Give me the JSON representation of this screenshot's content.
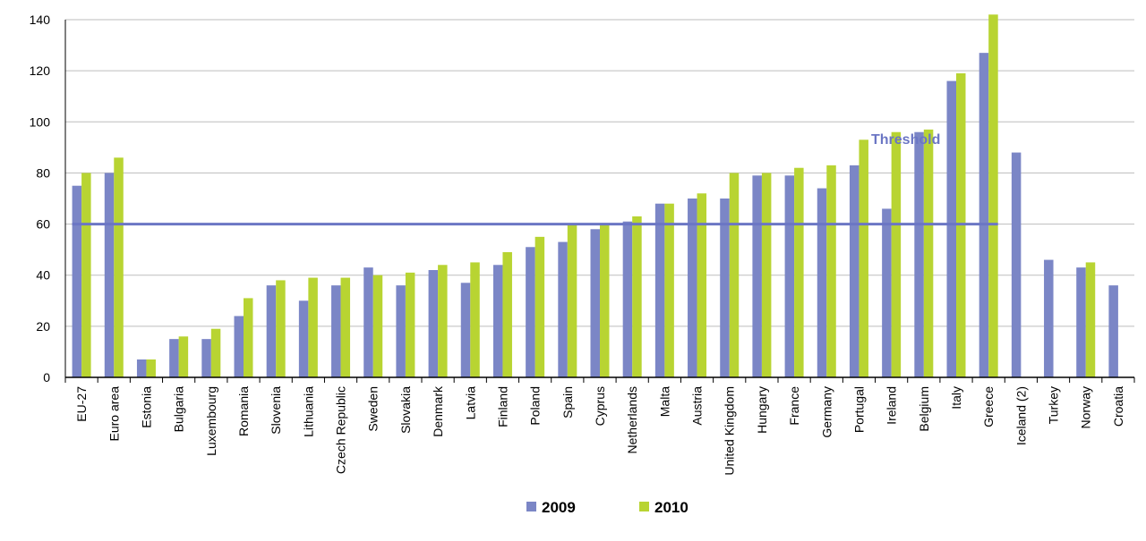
{
  "chart_data": {
    "type": "bar",
    "categories": [
      "EU-27",
      "Euro area",
      "Estonia",
      "Bulgaria",
      "Luxembourg",
      "Romania",
      "Slovenia",
      "Lithuania",
      "Czech Republic",
      "Sweden",
      "Slovakia",
      "Denmark",
      "Latvia",
      "Finland",
      "Poland",
      "Spain",
      "Cyprus",
      "Netherlands",
      "Malta",
      "Austria",
      "United Kingdom",
      "Hungary",
      "France",
      "Germany",
      "Portugal",
      "Ireland",
      "Belgium",
      "Italy",
      "Greece",
      "Iceland (2)",
      "Turkey",
      "Norway",
      "Croatia"
    ],
    "series": [
      {
        "name": "2009",
        "color": "#7b86c6",
        "values": [
          75,
          80,
          7,
          15,
          15,
          24,
          36,
          30,
          36,
          43,
          36,
          42,
          37,
          44,
          51,
          53,
          58,
          61,
          68,
          70,
          70,
          79,
          79,
          74,
          83,
          66,
          96,
          116,
          127,
          88,
          46,
          43,
          36
        ]
      },
      {
        "name": "2010",
        "color": "#b8d432",
        "values": [
          80,
          86,
          7,
          16,
          19,
          31,
          38,
          39,
          39,
          40,
          41,
          44,
          45,
          49,
          55,
          60,
          60,
          63,
          68,
          72,
          80,
          80,
          82,
          83,
          93,
          96,
          97,
          119,
          142,
          null,
          null,
          45,
          null
        ]
      }
    ],
    "threshold": {
      "label": "Threshold",
      "value": 60,
      "color": "#6b76c4"
    },
    "ylim": [
      0,
      140
    ],
    "yticks": [
      0,
      20,
      40,
      60,
      80,
      100,
      120,
      140
    ],
    "grid": true,
    "legend_position": "bottom",
    "title": "",
    "xlabel": "",
    "ylabel": ""
  }
}
